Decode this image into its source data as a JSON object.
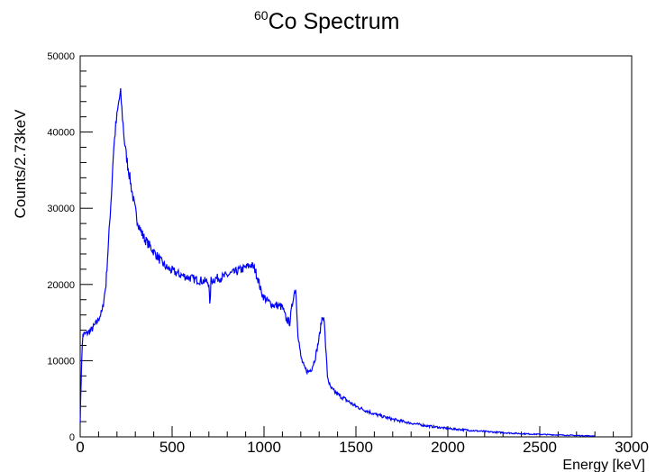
{
  "chart_data": {
    "type": "line",
    "title_isotope_mass": "60",
    "title_rest": "Co Spectrum",
    "xlabel": "Energy [keV]",
    "ylabel": "Counts/2.73keV",
    "xlim": [
      0,
      3000
    ],
    "ylim": [
      0,
      50000
    ],
    "x_ticks": [
      0,
      500,
      1000,
      1500,
      2000,
      2500,
      3000
    ],
    "y_ticks": [
      0,
      10000,
      20000,
      30000,
      40000,
      50000
    ],
    "grid": false,
    "line_color": "#0000ff",
    "series": [
      {
        "x": [
          0,
          8,
          15,
          30,
          60,
          90,
          120,
          140,
          160,
          170,
          180,
          190,
          200,
          210,
          220,
          230,
          240,
          250,
          270,
          290,
          310,
          330,
          350,
          380,
          410,
          440,
          470,
          500,
          540,
          580,
          620,
          660,
          700,
          705,
          712,
          740,
          780,
          820,
          860,
          900,
          930,
          950,
          970,
          985,
          1000,
          1020,
          1050,
          1080,
          1100,
          1120,
          1140,
          1160,
          1172,
          1185,
          1200,
          1220,
          1240,
          1260,
          1280,
          1300,
          1315,
          1325,
          1335,
          1345,
          1360,
          1380,
          1400,
          1450,
          1500,
          1600,
          1700,
          1800,
          1900,
          2000,
          2100,
          2200,
          2300,
          2400,
          2500,
          2600,
          2700,
          2800
        ],
        "y": [
          2000,
          10000,
          13500,
          13500,
          14000,
          15000,
          16500,
          20000,
          28000,
          32000,
          37000,
          40000,
          42000,
          44000,
          45000,
          42000,
          39000,
          37000,
          34000,
          31000,
          28500,
          27000,
          26000,
          25000,
          24000,
          23000,
          22200,
          21800,
          21300,
          21000,
          20700,
          20500,
          20300,
          17000,
          20500,
          20800,
          21000,
          21400,
          21800,
          22200,
          22600,
          22000,
          20500,
          19000,
          18300,
          17800,
          17300,
          17200,
          17000,
          15500,
          15000,
          18500,
          19500,
          13500,
          10500,
          9000,
          8500,
          9000,
          10500,
          13000,
          15500,
          16000,
          12000,
          8000,
          6500,
          6000,
          5600,
          4800,
          4000,
          3000,
          2300,
          1800,
          1400,
          1100,
          900,
          700,
          550,
          420,
          330,
          250,
          180,
          120
        ]
      }
    ]
  }
}
